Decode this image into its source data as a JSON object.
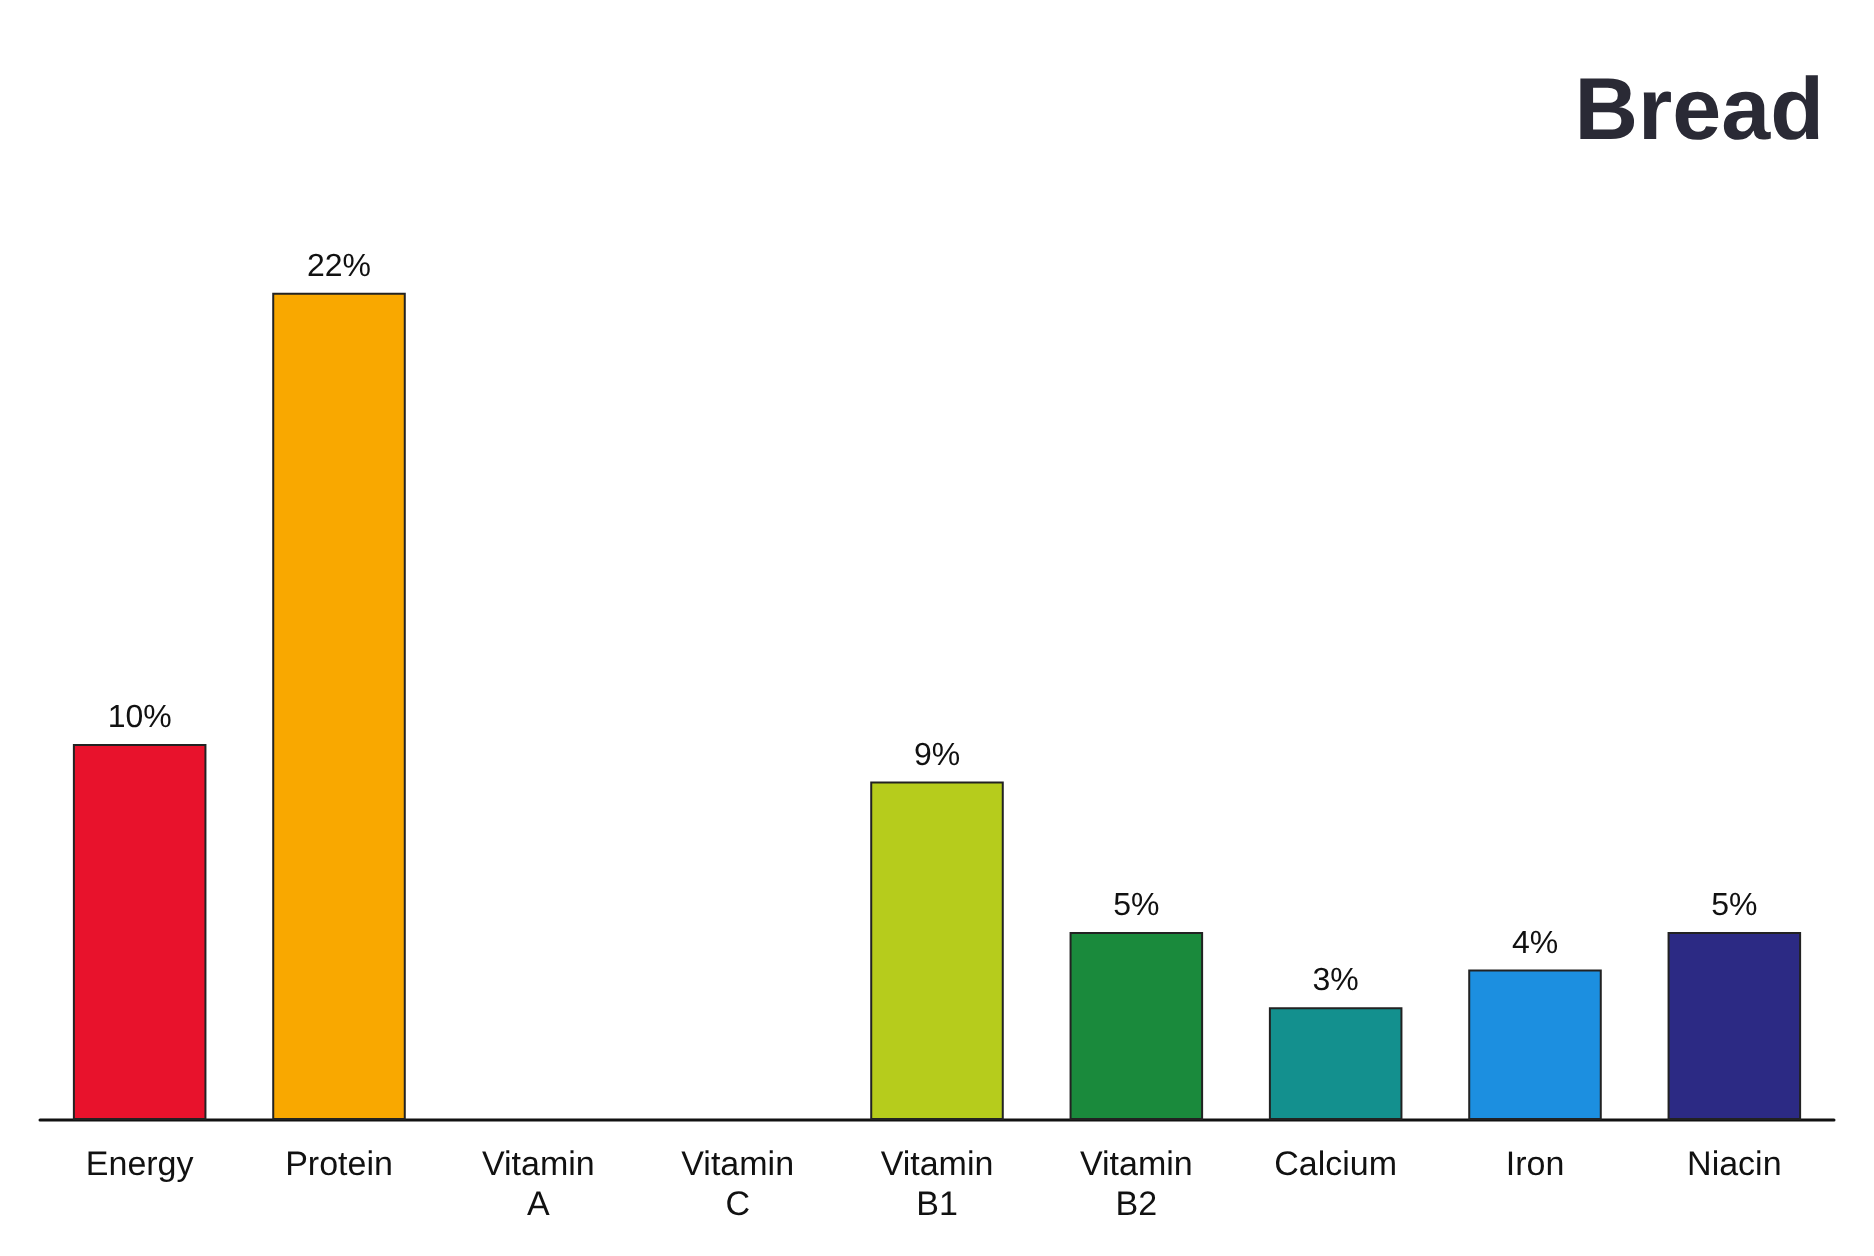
{
  "chart_data": {
    "type": "bar",
    "title": "Bread",
    "categories": [
      "Energy",
      "Protein",
      "Vitamin\nA",
      "Vitamin\nC",
      "Vitamin\nB1",
      "Vitamin\nB2",
      "Calcium",
      "Iron",
      "Niacin"
    ],
    "values": [
      10,
      22,
      0,
      0,
      9,
      5,
      3,
      4,
      5
    ],
    "value_labels": [
      "10%",
      "22%",
      null,
      null,
      "9%",
      "5%",
      "3%",
      "4%",
      "5%"
    ],
    "colors": [
      "#e8122c",
      "#f9a800",
      "#e8122c",
      "#e8122c",
      "#b6cc1c",
      "#1a8a3c",
      "#13908e",
      "#1c8fe0",
      "#2c2a84"
    ]
  }
}
